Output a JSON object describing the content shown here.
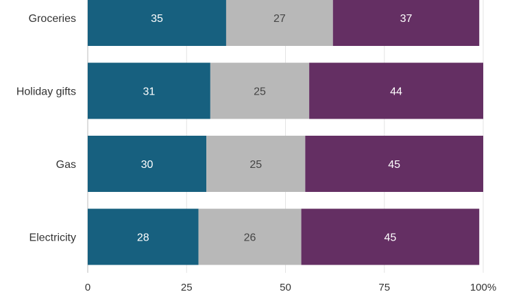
{
  "chart_data": {
    "type": "bar",
    "orientation": "horizontal",
    "stacked": true,
    "categories": [
      "Groceries",
      "Holiday gifts",
      "Gas",
      "Electricity"
    ],
    "series": [
      {
        "values": [
          35,
          31,
          30,
          28
        ],
        "color": "#17607f",
        "label_color": "#ffffff"
      },
      {
        "values": [
          27,
          25,
          25,
          26
        ],
        "color": "#b8b8b8",
        "label_color": "#444444"
      },
      {
        "values": [
          37,
          44,
          45,
          45
        ],
        "color": "#642f63",
        "label_color": "#ffffff"
      }
    ],
    "xlim": [
      0,
      100
    ],
    "xticks": [
      0,
      25,
      50,
      75,
      100
    ],
    "xtick_labels": [
      "0",
      "25",
      "50",
      "75",
      "100%"
    ],
    "grid": true
  }
}
